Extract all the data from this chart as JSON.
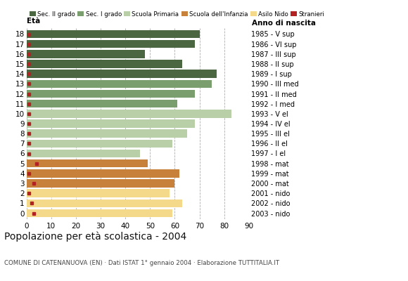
{
  "ages": [
    18,
    17,
    16,
    15,
    14,
    13,
    12,
    11,
    10,
    9,
    8,
    7,
    6,
    5,
    4,
    3,
    2,
    1,
    0
  ],
  "values": [
    70,
    68,
    48,
    63,
    77,
    75,
    68,
    61,
    83,
    68,
    65,
    59,
    46,
    49,
    62,
    60,
    58,
    63,
    59
  ],
  "stranieri": [
    1,
    1,
    1,
    1,
    1,
    1,
    1,
    1,
    1,
    1,
    1,
    1,
    1,
    4,
    1,
    3,
    1,
    2,
    3
  ],
  "bar_colors": [
    "#4a6741",
    "#4a6741",
    "#4a6741",
    "#4a6741",
    "#4a6741",
    "#7a9e6e",
    "#7a9e6e",
    "#7a9e6e",
    "#b8cfa8",
    "#b8cfa8",
    "#b8cfa8",
    "#b8cfa8",
    "#b8cfa8",
    "#c8813a",
    "#c8813a",
    "#c8813a",
    "#f5d98b",
    "#f5d98b",
    "#f5d98b"
  ],
  "anno_nascita": [
    "1985 - V sup",
    "1986 - VI sup",
    "1987 - III sup",
    "1988 - II sup",
    "1989 - I sup",
    "1990 - III med",
    "1991 - II med",
    "1992 - I med",
    "1993 - V el",
    "1994 - IV el",
    "1995 - III el",
    "1996 - II el",
    "1997 - I el",
    "1998 - mat",
    "1999 - mat",
    "2000 - mat",
    "2001 - nido",
    "2002 - nido",
    "2003 - nido"
  ],
  "legend_labels": [
    "Sec. II grado",
    "Sec. I grado",
    "Scuola Primaria",
    "Scuola dell'Infanzia",
    "Asilo Nido",
    "Stranieri"
  ],
  "legend_colors": [
    "#4a6741",
    "#7a9e6e",
    "#b8cfa8",
    "#c8813a",
    "#f5d98b",
    "#b22222"
  ],
  "stranieri_color": "#b22222",
  "title": "Popolazione per età scolastica - 2004",
  "subtitle": "COMUNE DI CATENANUOVA (EN) · Dati ISTAT 1° gennaio 2004 · Elaborazione TUTTITALIA.IT",
  "xlabel_left": "Età",
  "xlabel_right": "Anno di nascita",
  "xlim": [
    0,
    90
  ],
  "xticks": [
    0,
    10,
    20,
    30,
    40,
    50,
    60,
    70,
    80,
    90
  ],
  "background_color": "#ffffff",
  "grid_color": "#999999",
  "bar_height": 0.82
}
